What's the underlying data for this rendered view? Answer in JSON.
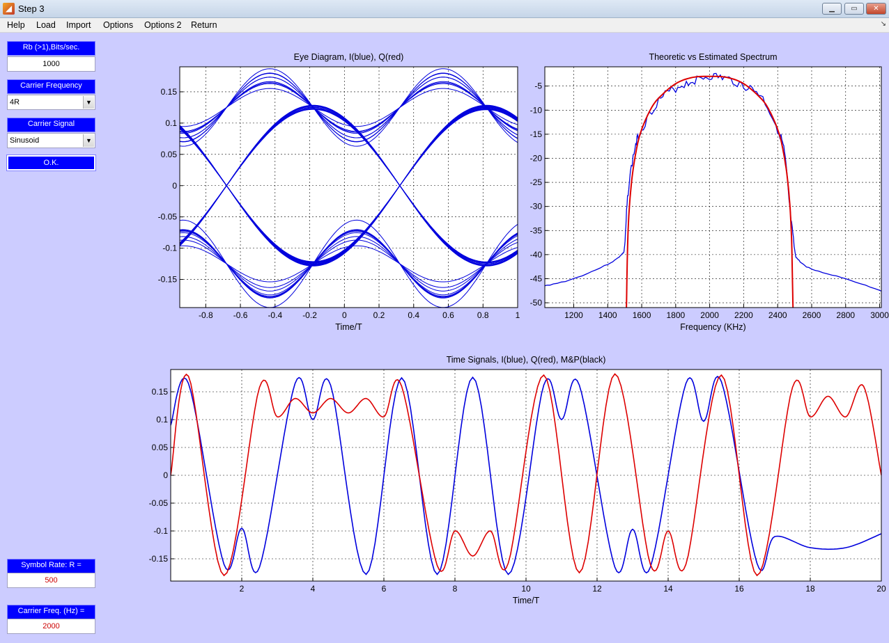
{
  "window": {
    "title": "Step 3",
    "icon": "matlab-icon",
    "controls": [
      "minimize-icon",
      "maximize-icon",
      "close-icon"
    ]
  },
  "menu": [
    "Help",
    "Load",
    "Import",
    "Options",
    "Options 2",
    "Return"
  ],
  "controls": {
    "rb_label": "Rb (>1),Bits/sec.",
    "rb_value": "1000",
    "carrier_freq_label": "Carrier Frequency",
    "carrier_freq_value": "4R",
    "carrier_signal_label": "Carrier Signal",
    "carrier_signal_value": "Sinusoid",
    "ok_label": "O.K.",
    "symbol_rate_label": "Symbol Rate: R =",
    "symbol_rate_value": "500",
    "carrier_freq_hz_label": "Carrier Freq. (Hz) =",
    "carrier_freq_hz_value": "2000"
  },
  "colors": {
    "I": "#0000dd",
    "Q": "#dd0000",
    "panel": "#ccccff",
    "label_bg": "#0000ff"
  },
  "chart_data": [
    {
      "type": "line",
      "title": "Eye Diagram, I(blue), Q(red)",
      "xlabel": "Time/T",
      "xlim": [
        -0.95,
        1.0
      ],
      "ylim": [
        -0.195,
        0.19
      ],
      "xticks": [
        -0.8,
        -0.6,
        -0.4,
        -0.2,
        0,
        0.2,
        0.4,
        0.6,
        0.8,
        1
      ],
      "xtick_labels": [
        "-0.8",
        "-0.6",
        "-0.4",
        "-0.2",
        "0",
        "0.2",
        "0.4",
        "0.6",
        "0.8",
        "1"
      ],
      "yticks": [
        0.15,
        0.1,
        0.05,
        0,
        -0.05,
        -0.1,
        -0.15
      ],
      "ytick_labels": [
        "0.15",
        "0.1",
        "0.05",
        "0",
        "-0.05",
        "-0.1",
        "-0.15"
      ],
      "grid": true,
      "series": [
        {
          "color": "#0000dd",
          "description": "overlaid symbol traces",
          "crossings": [
            {
              "x": -0.68,
              "y": 0.125
            },
            {
              "x": -0.68,
              "y": -0.125
            },
            {
              "x": -0.18,
              "y": 0.125
            },
            {
              "x": -0.18,
              "y": -0.125
            },
            {
              "x": 0.32,
              "y": 0.125
            },
            {
              "x": 0.32,
              "y": -0.125
            },
            {
              "x": 0.82,
              "y": 0.125
            },
            {
              "x": 0.82,
              "y": -0.125
            }
          ],
          "peaks": [
            {
              "x": -0.43,
              "y": 0.185
            },
            {
              "x": -0.43,
              "y": -0.185
            },
            {
              "x": 0.57,
              "y": 0.185
            },
            {
              "x": 0.57,
              "y": -0.185
            }
          ]
        }
      ]
    },
    {
      "type": "line",
      "title": "Theoretic vs Estimated Spectrum",
      "xlabel": "Frequency (KHz)",
      "xlim": [
        1030,
        3010
      ],
      "ylim": [
        -51,
        -1
      ],
      "xticks": [
        1200,
        1400,
        1600,
        1800,
        2000,
        2200,
        2400,
        2600,
        2800,
        3000
      ],
      "xtick_labels": [
        "1200",
        "1400",
        "1600",
        "1800",
        "2000",
        "2200",
        "2400",
        "2600",
        "2800",
        "3000"
      ],
      "yticks": [
        -5,
        -10,
        -15,
        -20,
        -25,
        -30,
        -35,
        -40,
        -45,
        -50
      ],
      "ytick_labels": [
        "-5",
        "-10",
        "-15",
        "-20",
        "-25",
        "-30",
        "-35",
        "-40",
        "-45",
        "-50"
      ],
      "grid": true,
      "series": [
        {
          "color": "#0000dd",
          "x": [
            1030,
            1200,
            1400,
            1480,
            1500,
            1520,
            1560,
            1600,
            1700,
            1800,
            1900,
            2000,
            2100,
            2200,
            2300,
            2400,
            2440,
            2470,
            2500,
            2520,
            2600,
            2800,
            3010
          ],
          "y": [
            -46.5,
            -45,
            -42,
            -40,
            -38,
            -27,
            -18,
            -14,
            -8,
            -5.5,
            -4,
            -3,
            -3.5,
            -5,
            -7,
            -14,
            -19,
            -30,
            -39,
            -41,
            -43,
            -45,
            -47.5
          ]
        },
        {
          "color": "#dd0000",
          "x": [
            1510,
            1520,
            1540,
            1570,
            1600,
            1650,
            1700,
            1800,
            1900,
            2000,
            2100,
            2200,
            2300,
            2350,
            2400,
            2430,
            2460,
            2480,
            2490
          ],
          "y": [
            -51,
            -35,
            -25,
            -18,
            -14,
            -10,
            -7.5,
            -4.5,
            -3.2,
            -3,
            -3.2,
            -4.5,
            -7.5,
            -10,
            -14,
            -18,
            -25,
            -35,
            -51
          ]
        }
      ]
    },
    {
      "type": "line",
      "title": "Time Signals, I(blue), Q(red), M&P(black)",
      "xlabel": "Time/T",
      "xlim": [
        0,
        20
      ],
      "ylim": [
        -0.19,
        0.19
      ],
      "xticks": [
        2,
        4,
        6,
        8,
        10,
        12,
        14,
        16,
        18,
        20
      ],
      "xtick_labels": [
        "2",
        "4",
        "6",
        "8",
        "10",
        "12",
        "14",
        "16",
        "18",
        "20"
      ],
      "yticks": [
        0.15,
        0.1,
        0.05,
        0,
        -0.05,
        -0.1,
        -0.15
      ],
      "ytick_labels": [
        "0.15",
        "0.1",
        "0.05",
        "0",
        "-0.05",
        "-0.1",
        "-0.15"
      ],
      "grid": true,
      "series": [
        {
          "color": "#0000dd",
          "x": [
            0,
            0.5,
            1.5,
            2.0,
            2.5,
            3.5,
            4.0,
            4.5,
            5.5,
            6.5,
            7.5,
            8.5,
            9.5,
            10.5,
            11.0,
            11.5,
            12.5,
            13.0,
            13.5,
            14.5,
            15.0,
            15.5,
            16.5,
            17.0,
            18.0,
            19.0,
            20.0
          ],
          "y": [
            0.09,
            0.165,
            -0.16,
            -0.095,
            -0.165,
            0.165,
            0.1,
            0.162,
            -0.178,
            0.175,
            -0.178,
            0.176,
            -0.178,
            0.162,
            0.1,
            0.162,
            -0.165,
            -0.097,
            -0.165,
            0.165,
            0.097,
            0.168,
            -0.158,
            -0.11,
            -0.13,
            -0.13,
            -0.105
          ]
        },
        {
          "color": "#dd0000",
          "x": [
            0,
            0.5,
            1.5,
            2.5,
            3.0,
            3.5,
            4.0,
            4.5,
            5.0,
            5.5,
            6.0,
            6.5,
            7.5,
            8.0,
            8.5,
            9.0,
            9.5,
            10.5,
            11.5,
            12.5,
            13.5,
            14.0,
            14.5,
            15.5,
            16.5,
            17.5,
            18.0,
            18.5,
            19.0,
            19.5,
            20.0
          ],
          "y": [
            0.0,
            0.178,
            -0.18,
            0.158,
            0.105,
            0.138,
            0.112,
            0.138,
            0.112,
            0.138,
            0.105,
            0.16,
            -0.162,
            -0.1,
            -0.145,
            -0.1,
            -0.158,
            0.18,
            -0.175,
            0.182,
            -0.16,
            -0.1,
            -0.16,
            0.18,
            -0.18,
            0.158,
            0.105,
            0.142,
            0.105,
            0.16,
            0.0
          ]
        }
      ]
    }
  ]
}
